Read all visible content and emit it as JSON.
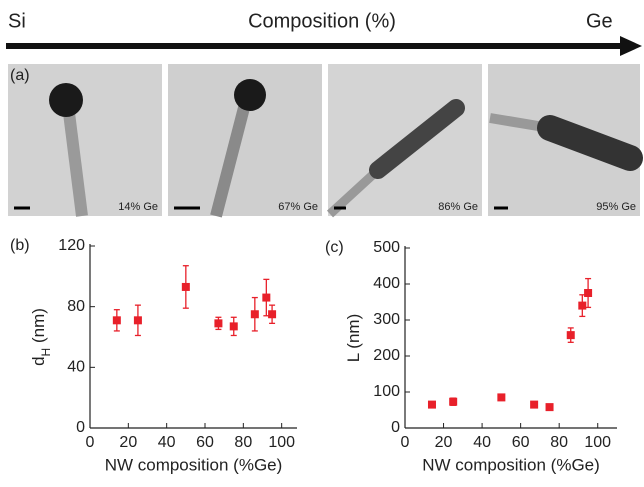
{
  "header": {
    "left": "Si",
    "center": "Composition (%)",
    "right": "Ge"
  },
  "panel_a": "(a)",
  "images": [
    {
      "label": "14% Ge"
    },
    {
      "label": "67% Ge"
    },
    {
      "label": "86% Ge"
    },
    {
      "label": "95% Ge"
    }
  ],
  "chart_data": [
    {
      "type": "scatter",
      "panel_label": "(b)",
      "xlabel": "NW composition (%Ge)",
      "ylabel_parts": [
        "d",
        "H",
        " (nm)"
      ],
      "x": [
        14,
        25,
        50,
        67,
        75,
        86,
        92,
        95
      ],
      "series": [
        {
          "color": "#e8202a",
          "values": [
            71,
            71,
            93,
            69,
            67,
            75,
            86,
            75
          ],
          "errors": [
            7,
            10,
            14,
            4,
            6,
            11,
            12,
            6
          ]
        }
      ],
      "xlim": [
        0,
        108
      ],
      "xticks": [
        0,
        20,
        40,
        60,
        80,
        100
      ],
      "ylim": [
        0,
        120
      ],
      "yticks": [
        0,
        40,
        80,
        120
      ]
    },
    {
      "type": "scatter",
      "panel_label": "(c)",
      "xlabel": "NW composition (%Ge)",
      "ylabel_parts": [
        "L (nm)"
      ],
      "x": [
        14,
        25,
        50,
        67,
        75,
        86,
        92,
        95
      ],
      "series": [
        {
          "color": "#e8202a",
          "values": [
            65,
            73,
            85,
            65,
            58,
            258,
            340,
            375
          ],
          "errors": [
            5,
            10,
            8,
            5,
            5,
            20,
            30,
            40
          ]
        }
      ],
      "xlim": [
        0,
        110
      ],
      "xticks": [
        0,
        20,
        40,
        60,
        80,
        100
      ],
      "ylim": [
        0,
        500
      ],
      "yticks": [
        0,
        100,
        200,
        300,
        400,
        500
      ]
    }
  ]
}
